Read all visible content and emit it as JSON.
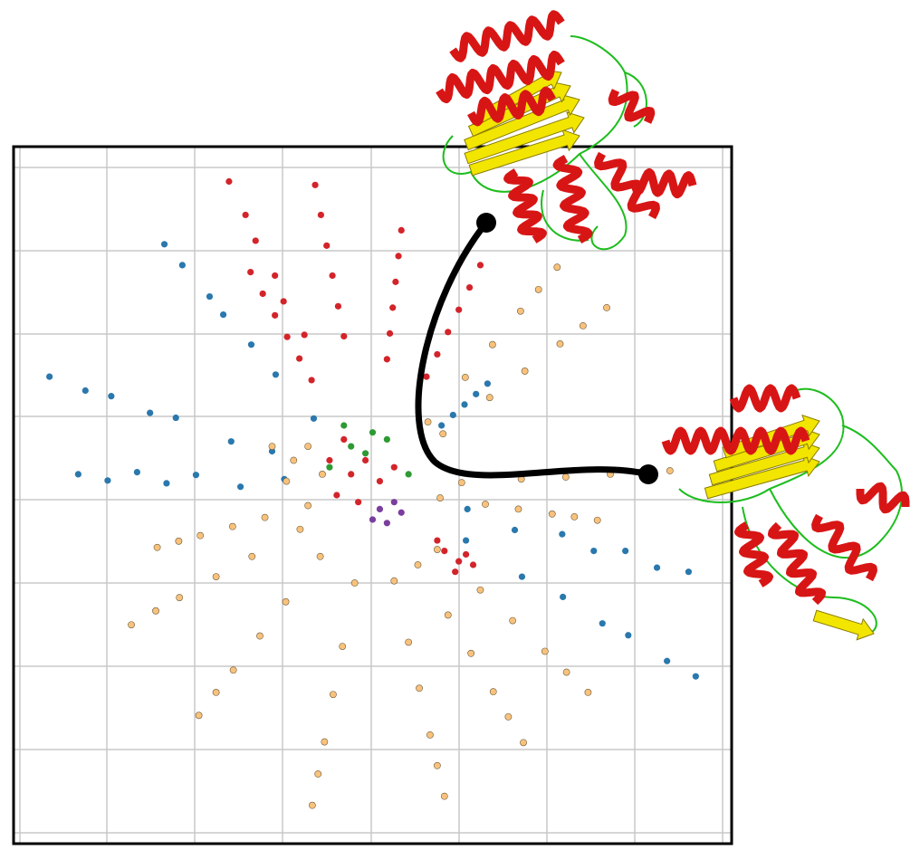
{
  "chart_data": {
    "type": "scatter",
    "grid": true,
    "xlim": [
      0,
      100
    ],
    "ylim": [
      0,
      100
    ],
    "series": [
      {
        "color": "#2a78ad",
        "stroke": "none",
        "x": [
          41.8,
          36.5,
          33.1,
          29.2,
          27.3,
          23.5,
          21,
          36,
          30.3,
          22.6,
          19,
          13.6,
          10,
          5,
          37.7,
          31.6,
          25.4,
          21.3,
          17.2,
          13.1,
          9,
          63,
          70.8,
          76.5,
          82,
          85.6,
          91,
          95,
          63.2,
          69.8,
          76.4,
          80.8,
          85.2,
          89.6,
          94,
          59.6,
          61.2,
          62.8,
          64.4,
          66
        ],
        "values": [
          61,
          67.3,
          71.6,
          75.9,
          78.5,
          83,
          86,
          56.3,
          57.7,
          61.1,
          61.8,
          64.2,
          65,
          67,
          52.3,
          51.2,
          52.9,
          51.7,
          53.3,
          52.1,
          53,
          43.5,
          38.3,
          35.4,
          31.6,
          29.9,
          26.2,
          24,
          48,
          45,
          44.4,
          42,
          42,
          39.6,
          39,
          60,
          61.5,
          63,
          64.5,
          66
        ]
      },
      {
        "color": "#f9c27c",
        "stroke": "#6b5a3a",
        "x": [
          47.5,
          45.8,
          44.5,
          43.3,
          42.4,
          41.6,
          53,
          55,
          56.5,
          58,
          59,
          60,
          39.9,
          33.2,
          28.2,
          23.1,
          19.8,
          16.4,
          42.7,
          37.9,
          34.3,
          30.6,
          28.2,
          25.8,
          56.3,
          60.5,
          63.7,
          66.8,
          68.9,
          71,
          59,
          65,
          69.5,
          74,
          77,
          80,
          62.4,
          70.7,
          76.9,
          83.1,
          87.3,
          91.4,
          59.8,
          66.3,
          71.2,
          76.1,
          79.3,
          82.6,
          57.7,
          62.9,
          66.7,
          70.6,
          73.1,
          75.7,
          59.4,
          65.7,
          70.3,
          75,
          78.1,
          81.3,
          41,
          35,
          30.5,
          26,
          23,
          20,
          39,
          41,
          43,
          36,
          38
        ],
        "values": [
          37.4,
          28.3,
          21.4,
          14.6,
          10,
          5.5,
          37.7,
          28.9,
          22.3,
          15.6,
          11.2,
          6.8,
          45.1,
          41.2,
          38.3,
          35.3,
          33.4,
          31.4,
          41.2,
          34.7,
          29.8,
          24.9,
          21.7,
          18.4,
          40,
          32.8,
          27.3,
          21.8,
          18.2,
          14.5,
          42.2,
          36.4,
          32,
          27.6,
          24.6,
          21.7,
          51.8,
          52.3,
          52.6,
          53,
          53.3,
          53.5,
          58.8,
          64,
          67.8,
          71.7,
          74.3,
          76.9,
          60.5,
          66.9,
          71.6,
          76.4,
          79.5,
          82.7,
          49.6,
          48.7,
          48,
          47.3,
          46.9,
          46.4,
          48.5,
          46.8,
          45.5,
          44.2,
          43.4,
          42.5,
          55,
          57,
          53,
          57,
          52
        ]
      },
      {
        "color": "#d3242a",
        "stroke": "none",
        "x": [
          40.5,
          37.6,
          36.4,
          33.7,
          32.3,
          30,
          46,
          45.2,
          44.4,
          43.6,
          42.8,
          42,
          52,
          52.4,
          52.8,
          53.2,
          53.6,
          54,
          41.5,
          39.8,
          38.1,
          36.4,
          34.7,
          33,
          57.5,
          59,
          60.5,
          62,
          63.5,
          65,
          60,
          62,
          63,
          61.5,
          64,
          59,
          47,
          49,
          51,
          45,
          48,
          53,
          44,
          46
        ],
        "values": [
          73,
          77.8,
          81.5,
          86.5,
          90.2,
          95,
          72.8,
          77.1,
          81.5,
          85.8,
          90.2,
          94.5,
          69.5,
          73.2,
          76.9,
          80.6,
          84.3,
          88,
          66.5,
          69.6,
          72.7,
          75.8,
          78.9,
          82,
          67,
          70.2,
          73.4,
          76.6,
          79.8,
          83,
          42,
          40.5,
          41.5,
          39,
          40,
          43.5,
          53,
          55,
          52,
          50,
          49,
          54,
          55,
          58
        ]
      },
      {
        "color": "#2e9a35",
        "stroke": "none",
        "x": [
          47,
          49,
          44,
          52,
          55,
          50,
          46
        ],
        "values": [
          57,
          56,
          54,
          58,
          53,
          59,
          60
        ]
      },
      {
        "color": "#7a3e9e",
        "stroke": "none",
        "x": [
          51,
          52,
          53,
          50,
          54
        ],
        "values": [
          48,
          46,
          49,
          46.5,
          47.5
        ]
      }
    ]
  }
}
